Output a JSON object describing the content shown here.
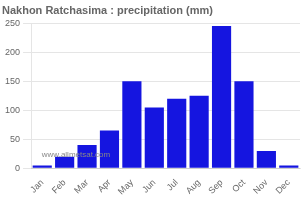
{
  "chart_data": {
    "type": "bar",
    "title": "Nakhon Ratchasima : precipitation (mm)",
    "categories": [
      "Jan",
      "Feb",
      "Mar",
      "Apr",
      "May",
      "Jun",
      "Jul",
      "Aug",
      "Sep",
      "Oct",
      "Nov",
      "Dec"
    ],
    "values": [
      5,
      20,
      40,
      65,
      150,
      105,
      120,
      125,
      245,
      150,
      30,
      5
    ],
    "color": "#1515e0",
    "ylim": [
      0,
      250
    ],
    "yticks": [
      0,
      50,
      100,
      150,
      200,
      250
    ],
    "grid": true,
    "annotation": "www.allmetsat.com"
  }
}
